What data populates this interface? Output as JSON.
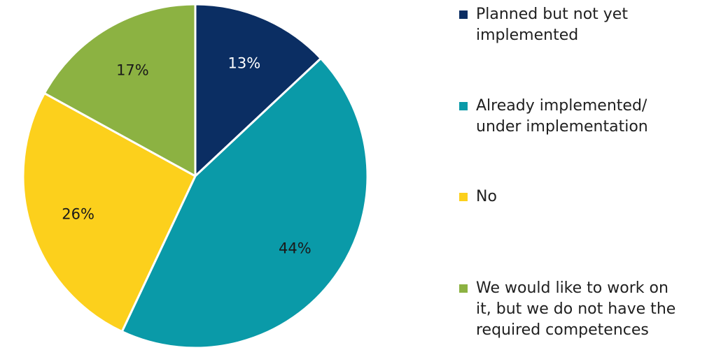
{
  "chart_data": {
    "type": "pie",
    "title": "",
    "slices": [
      {
        "label": "Planned but not yet\nimplemented",
        "value": 13,
        "display": "13%",
        "color": "#0b2e63",
        "label_color": "#ffffff"
      },
      {
        "label": "Already implemented/\nunder implementation",
        "value": 44,
        "display": "44%",
        "color": "#0a9aa8",
        "label_color": "#1a1a1a"
      },
      {
        "label": "No",
        "value": 26,
        "display": "26%",
        "color": "#fcd01c",
        "label_color": "#1a1a1a"
      },
      {
        "label": "We would like to work on\nit, but we do not have the\nrequired competences",
        "value": 17,
        "display": "17%",
        "color": "#8cb242",
        "label_color": "#1a1a1a"
      }
    ],
    "legend_position": "right",
    "start_angle": "12 o'clock",
    "direction": "clockwise"
  }
}
